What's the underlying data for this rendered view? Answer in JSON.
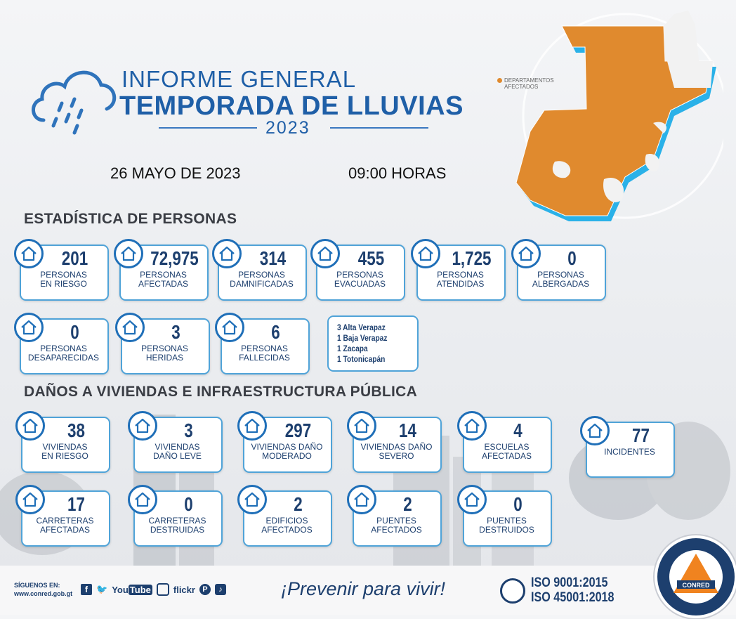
{
  "header": {
    "title_line1": "INFORME GENERAL",
    "title_line2": "TEMPORADA DE LLUVIAS",
    "year": "2023",
    "date": "26 MAYO DE 2023",
    "hours": "09:00 HORAS"
  },
  "map": {
    "legend_line1": "DEPARTAMENTOS",
    "legend_line2": "AFECTADOS",
    "affected_color": "#e08a2e"
  },
  "sections": {
    "people": "ESTADÍSTICA DE PERSONAS",
    "damages": "DAÑOS A VIVIENDAS E INFRAESTRUCTURA PÚBLICA"
  },
  "people": [
    {
      "value": "201",
      "label1": "PERSONAS",
      "label2": "EN RIESGO",
      "icon": "rain-people-icon"
    },
    {
      "value": "72,975",
      "label1": "PERSONAS",
      "label2": "AFECTADAS",
      "icon": "flood-people-icon"
    },
    {
      "value": "314",
      "label1": "PERSONAS",
      "label2": "DAMNIFICADAS",
      "icon": "damaged-house-people-icon"
    },
    {
      "value": "455",
      "label1": "PERSONAS",
      "label2": "EVACUADAS",
      "icon": "running-exit-icon"
    },
    {
      "value": "1,725",
      "label1": "PERSONAS",
      "label2": "ATENDIDAS",
      "icon": "helping-people-icon"
    },
    {
      "value": "0",
      "label1": "PERSONAS",
      "label2": "ALBERGADAS",
      "icon": "shelter-icon"
    },
    {
      "value": "0",
      "label1": "PERSONAS",
      "label2": "DESAPARECIDAS",
      "icon": "missing-people-icon"
    },
    {
      "value": "3",
      "label1": "PERSONAS",
      "label2": "HERIDAS",
      "icon": "injured-person-icon"
    },
    {
      "value": "6",
      "label1": "PERSONAS",
      "label2": "FALLECIDAS",
      "icon": "cross-icon"
    }
  ],
  "deaths_breakdown": [
    "3 Alta Verapaz",
    "1 Baja Verapaz",
    "1 Zacapa",
    "1 Totonicapán"
  ],
  "damages": [
    {
      "value": "38",
      "label1": "VIVIENDAS",
      "label2": "EN RIESGO",
      "icon": "house-risk-icon"
    },
    {
      "value": "3",
      "label1": "VIVIENDAS",
      "label2": "DAÑO LEVE",
      "icon": "house-icon"
    },
    {
      "value": "297",
      "label1": "VIVIENDAS DAÑO",
      "label2": "MODERADO",
      "icon": "house-moderate-icon"
    },
    {
      "value": "14",
      "label1": "VIVIENDAS DAÑO",
      "label2": "SEVERO",
      "icon": "house-severe-icon"
    },
    {
      "value": "4",
      "label1": "ESCUELAS",
      "label2": "AFECTADAS",
      "icon": "school-icon"
    },
    {
      "value": "77",
      "label1": "INCIDENTES",
      "label2": "",
      "icon": "flood-house-icon"
    },
    {
      "value": "17",
      "label1": "CARRETERAS",
      "label2": "AFECTADAS",
      "icon": "road-icon"
    },
    {
      "value": "0",
      "label1": "CARRETERAS",
      "label2": "DESTRUIDAS",
      "icon": "broken-road-icon"
    },
    {
      "value": "2",
      "label1": "EDIFICIOS",
      "label2": "AFECTADOS",
      "icon": "building-icon"
    },
    {
      "value": "2",
      "label1": "PUENTES",
      "label2": "AFECTADOS",
      "icon": "bridge-icon"
    },
    {
      "value": "0",
      "label1": "PUENTES",
      "label2": "DESTRUIDOS",
      "icon": "broken-bridge-icon"
    }
  ],
  "footer": {
    "follow_label": "SÍGUENOS EN:",
    "website": "www.conred.gob.gt",
    "youtube": "You",
    "youtube2": "Tube",
    "flickr": "flickr",
    "slogan": "¡Prevenir para vivir!",
    "iso1": "ISO 9001:2015",
    "iso2": "ISO 45001:2018",
    "logo_text": "CONRED"
  },
  "colors": {
    "primary": "#1f5fa7",
    "dark": "#1d3f6e",
    "card_border": "#4fa3d8",
    "map_orange": "#e08a2e"
  }
}
